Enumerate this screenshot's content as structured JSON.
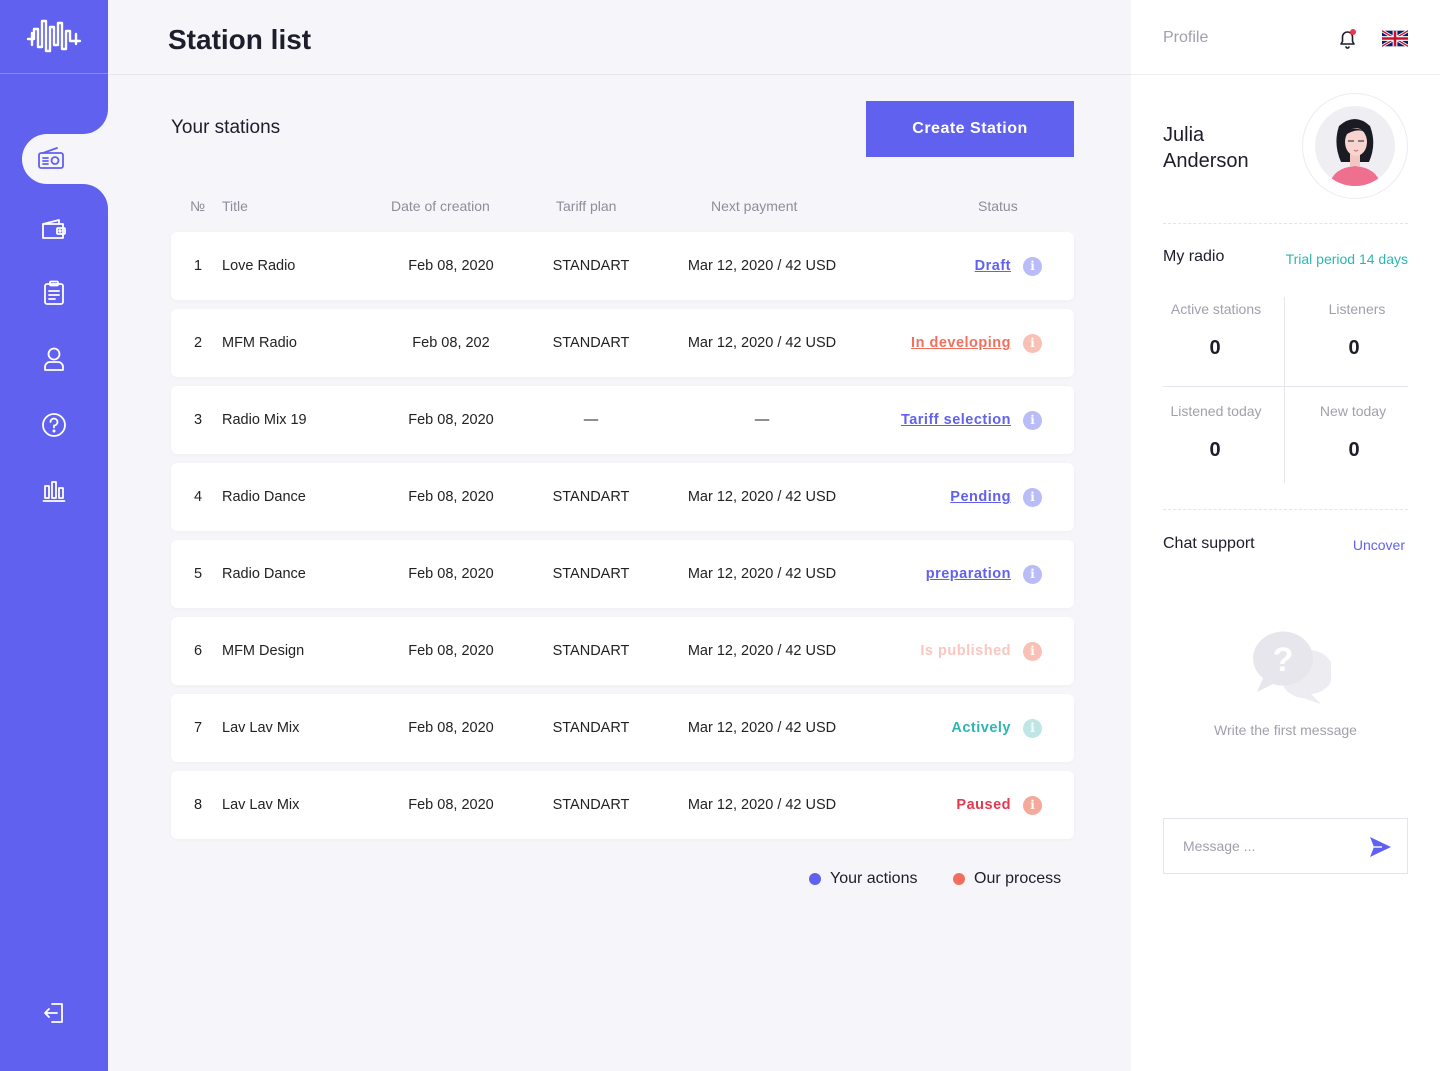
{
  "header": {
    "title": "Station list"
  },
  "main": {
    "section_title": "Your stations",
    "create_button": "Create Station",
    "columns": {
      "num": "№",
      "title": "Title",
      "date": "Date of creation",
      "tariff": "Tariff plan",
      "payment": "Next payment",
      "status": "Status"
    },
    "rows": [
      {
        "num": "1",
        "title": "Love Radio",
        "date": "Feb 08, 2020",
        "tariff": "STANDART",
        "payment": "Mar 12, 2020 / 42 USD",
        "status": "Draft",
        "status_color": "#6062ef",
        "info_color": "#b9bcf6",
        "underline": true
      },
      {
        "num": "2",
        "title": "MFM Radio",
        "date": "Feb 08, 202",
        "tariff": "STANDART",
        "payment": "Mar 12, 2020 / 42 USD",
        "status": "In developing",
        "status_color": "#f1705d",
        "info_color": "#f9c0b6",
        "underline": true
      },
      {
        "num": "3",
        "title": "Radio Mix 19",
        "date": "Feb 08, 2020",
        "tariff": "—",
        "payment": "—",
        "status": "Tariff selection",
        "status_color": "#6062ef",
        "info_color": "#b9bcf6",
        "underline": true
      },
      {
        "num": "4",
        "title": "Radio Dance",
        "date": "Feb 08, 2020",
        "tariff": "STANDART",
        "payment": "Mar 12, 2020 / 42 USD",
        "status": "Pending",
        "status_color": "#6062ef",
        "info_color": "#b9bcf6",
        "underline": true
      },
      {
        "num": "5",
        "title": "Radio Dance",
        "date": "Feb 08, 2020",
        "tariff": "STANDART",
        "payment": "Mar 12, 2020 / 42 USD",
        "status": "preparation",
        "status_color": "#6062ef",
        "info_color": "#b9bcf6",
        "underline": true
      },
      {
        "num": "6",
        "title": "MFM Design",
        "date": "Feb 08, 2020",
        "tariff": "STANDART",
        "payment": "Mar 12, 2020 / 42 USD",
        "status": "Is published",
        "status_color": "#f9c6c0",
        "info_color": "#f9c0b6",
        "underline": false
      },
      {
        "num": "7",
        "title": "Lav Lav Mix",
        "date": "Feb 08, 2020",
        "tariff": "STANDART",
        "payment": "Mar 12, 2020 / 42 USD",
        "status": "Actively",
        "status_color": "#2cb7b2",
        "info_color": "#bfe6e4",
        "underline": false
      },
      {
        "num": "8",
        "title": "Lav Lav Mix",
        "date": "Feb 08, 2020",
        "tariff": "STANDART",
        "payment": "Mar 12, 2020 / 42 USD",
        "status": "Paused",
        "status_color": "#e8384f",
        "info_color": "#f5a99b",
        "underline": false
      }
    ],
    "legend": [
      {
        "label": "Your actions",
        "color": "#6062ef"
      },
      {
        "label": "Our process",
        "color": "#f1705d"
      }
    ]
  },
  "sidebar": {
    "items": [
      {
        "icon": "radio-icon",
        "active": true
      },
      {
        "icon": "wallet-icon",
        "active": false
      },
      {
        "icon": "clipboard-icon",
        "active": false
      },
      {
        "icon": "user-icon",
        "active": false
      },
      {
        "icon": "help-icon",
        "active": false
      },
      {
        "icon": "stats-icon",
        "active": false
      }
    ],
    "logout_icon": "logout-icon"
  },
  "profile": {
    "label": "Profile",
    "name_first": "Julia",
    "name_last": "Anderson",
    "my_radio": "My radio",
    "trial": "Trial period 14 days",
    "stats": {
      "active_label": "Active stations",
      "active_value": "0",
      "listeners_label": "Listeners",
      "listeners_value": "0",
      "listened_label": "Listened today",
      "listened_value": "0",
      "new_label": "New today",
      "new_value": "0"
    },
    "chat_title": "Chat support",
    "uncover": "Uncover",
    "chat_empty": "Write the first message",
    "message_placeholder": "Message ..."
  },
  "colors": {
    "accent": "#6062ef",
    "teal": "#2cb7b2",
    "coral": "#f1705d"
  }
}
